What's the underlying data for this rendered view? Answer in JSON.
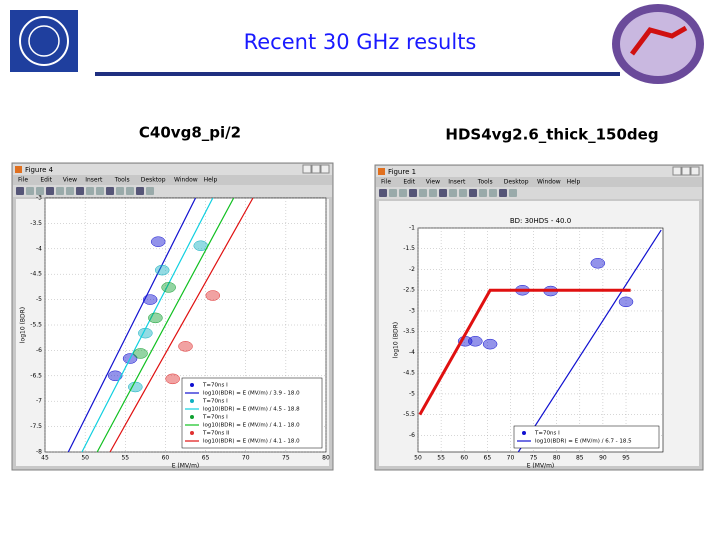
{
  "header": {
    "title": "Recent 30 GHz results"
  },
  "panels": [
    {
      "caption": "C40vg8_pi/2"
    },
    {
      "caption": "HDS4vg2.6_thick_150deg"
    }
  ],
  "windows": [
    {
      "title": "Figure 4",
      "menu": [
        "File",
        "Edit",
        "View",
        "Insert",
        "Tools",
        "Desktop",
        "Window",
        "Help"
      ]
    },
    {
      "title": "Figure 1",
      "menu": [
        "File",
        "Edit",
        "View",
        "Insert",
        "Tools",
        "Desktop",
        "Window",
        "Help"
      ]
    }
  ],
  "chart_data": [
    {
      "type": "line",
      "xlabel": "E (MV/m)",
      "ylabel": "log10 (BDR)",
      "xlim": [
        45,
        80
      ],
      "xticks": [
        45,
        50,
        55,
        60,
        65,
        70,
        75,
        80
      ],
      "ylim": [
        -8,
        -3
      ],
      "yticks": [
        -3,
        -3.5,
        -4,
        -4.5,
        -5,
        -5.5,
        -6,
        -6.5,
        -7,
        -7.5,
        -8
      ],
      "grid": true,
      "legend": "lower right",
      "series": [
        {
          "name": "T=70ns I",
          "mode": "markers",
          "color": "#1010d0",
          "x": [
            59.1,
            58.1,
            55.6,
            53.75
          ],
          "values": [
            -3.86,
            -5.0,
            -6.16,
            -6.5
          ]
        },
        {
          "name": "log10(BDR) = E (MV/m) / 3.9 - 18.0",
          "mode": "lines",
          "color": "#1010d0",
          "x": [
            47.9,
            63.75
          ],
          "values": [
            -8,
            -3
          ]
        },
        {
          "name": "T=70ns I",
          "mode": "markers",
          "color": "#10b0c0",
          "x": [
            64.4,
            59.6,
            57.5,
            56.25
          ],
          "values": [
            -3.94,
            -4.42,
            -5.66,
            -6.72
          ]
        },
        {
          "name": "log10(BDR) = E (MV/m) / 4.5 - 18.8",
          "mode": "lines",
          "color": "#10d0e0",
          "x": [
            49.6,
            65.9
          ],
          "values": [
            -8,
            -3
          ]
        },
        {
          "name": "T=70ns I",
          "mode": "markers",
          "color": "#10a030",
          "x": [
            60.4,
            58.75,
            56.9
          ],
          "values": [
            -4.76,
            -5.36,
            -6.06
          ]
        },
        {
          "name": "log10(BDR) = E (MV/m) / 4.1 - 18.0",
          "mode": "lines",
          "color": "#10c020",
          "x": [
            51.5,
            68.5
          ],
          "values": [
            -8,
            -3
          ]
        },
        {
          "name": "T=70ns II",
          "mode": "markers",
          "color": "#e03030",
          "x": [
            65.9,
            62.5,
            60.9
          ],
          "values": [
            -4.92,
            -5.92,
            -6.56
          ]
        },
        {
          "name": "log10(BDR) = E (MV/m) / 4.1 - 18.0",
          "mode": "lines",
          "color": "#e01010",
          "x": [
            53.1,
            70.9
          ],
          "values": [
            -8,
            -3
          ]
        }
      ]
    },
    {
      "type": "line",
      "title": "BD: 30HDS - 40.0",
      "xlabel": "E (MV/m)",
      "ylabel": "log10 (BDR)",
      "xlim": [
        50,
        103
      ],
      "xticks": [
        50,
        55,
        60,
        65,
        70,
        75,
        80,
        85,
        90,
        95
      ],
      "ylim": [
        -6.4,
        -1
      ],
      "yticks": [
        -1,
        -1.5,
        -2,
        -2.5,
        -3,
        -3.5,
        -4,
        -4.5,
        -5,
        -5.5,
        -6
      ],
      "grid": true,
      "legend": "lower right",
      "series": [
        {
          "name": "T=70ns I",
          "mode": "markers",
          "color": "#1010d0",
          "x": [
            60.2,
            62.4,
            65.6,
            72.6,
            78.7,
            88.9,
            95
          ],
          "values": [
            -3.73,
            -3.73,
            -3.8,
            -2.5,
            -2.52,
            -1.85,
            -2.78
          ]
        },
        {
          "name": "log10(BDR) = E (MV/m) / 6.7 - 18.5",
          "mode": "lines",
          "color": "#1010d0",
          "x": [
            71.7,
            102.6
          ],
          "values": [
            -6.4,
            -1.05
          ]
        },
        {
          "mode": "lines",
          "color": "#e01010",
          "linewidth": 3,
          "x": [
            50.4,
            65.6,
            96
          ],
          "values": [
            -5.5,
            -2.5,
            -2.5
          ]
        }
      ]
    }
  ]
}
